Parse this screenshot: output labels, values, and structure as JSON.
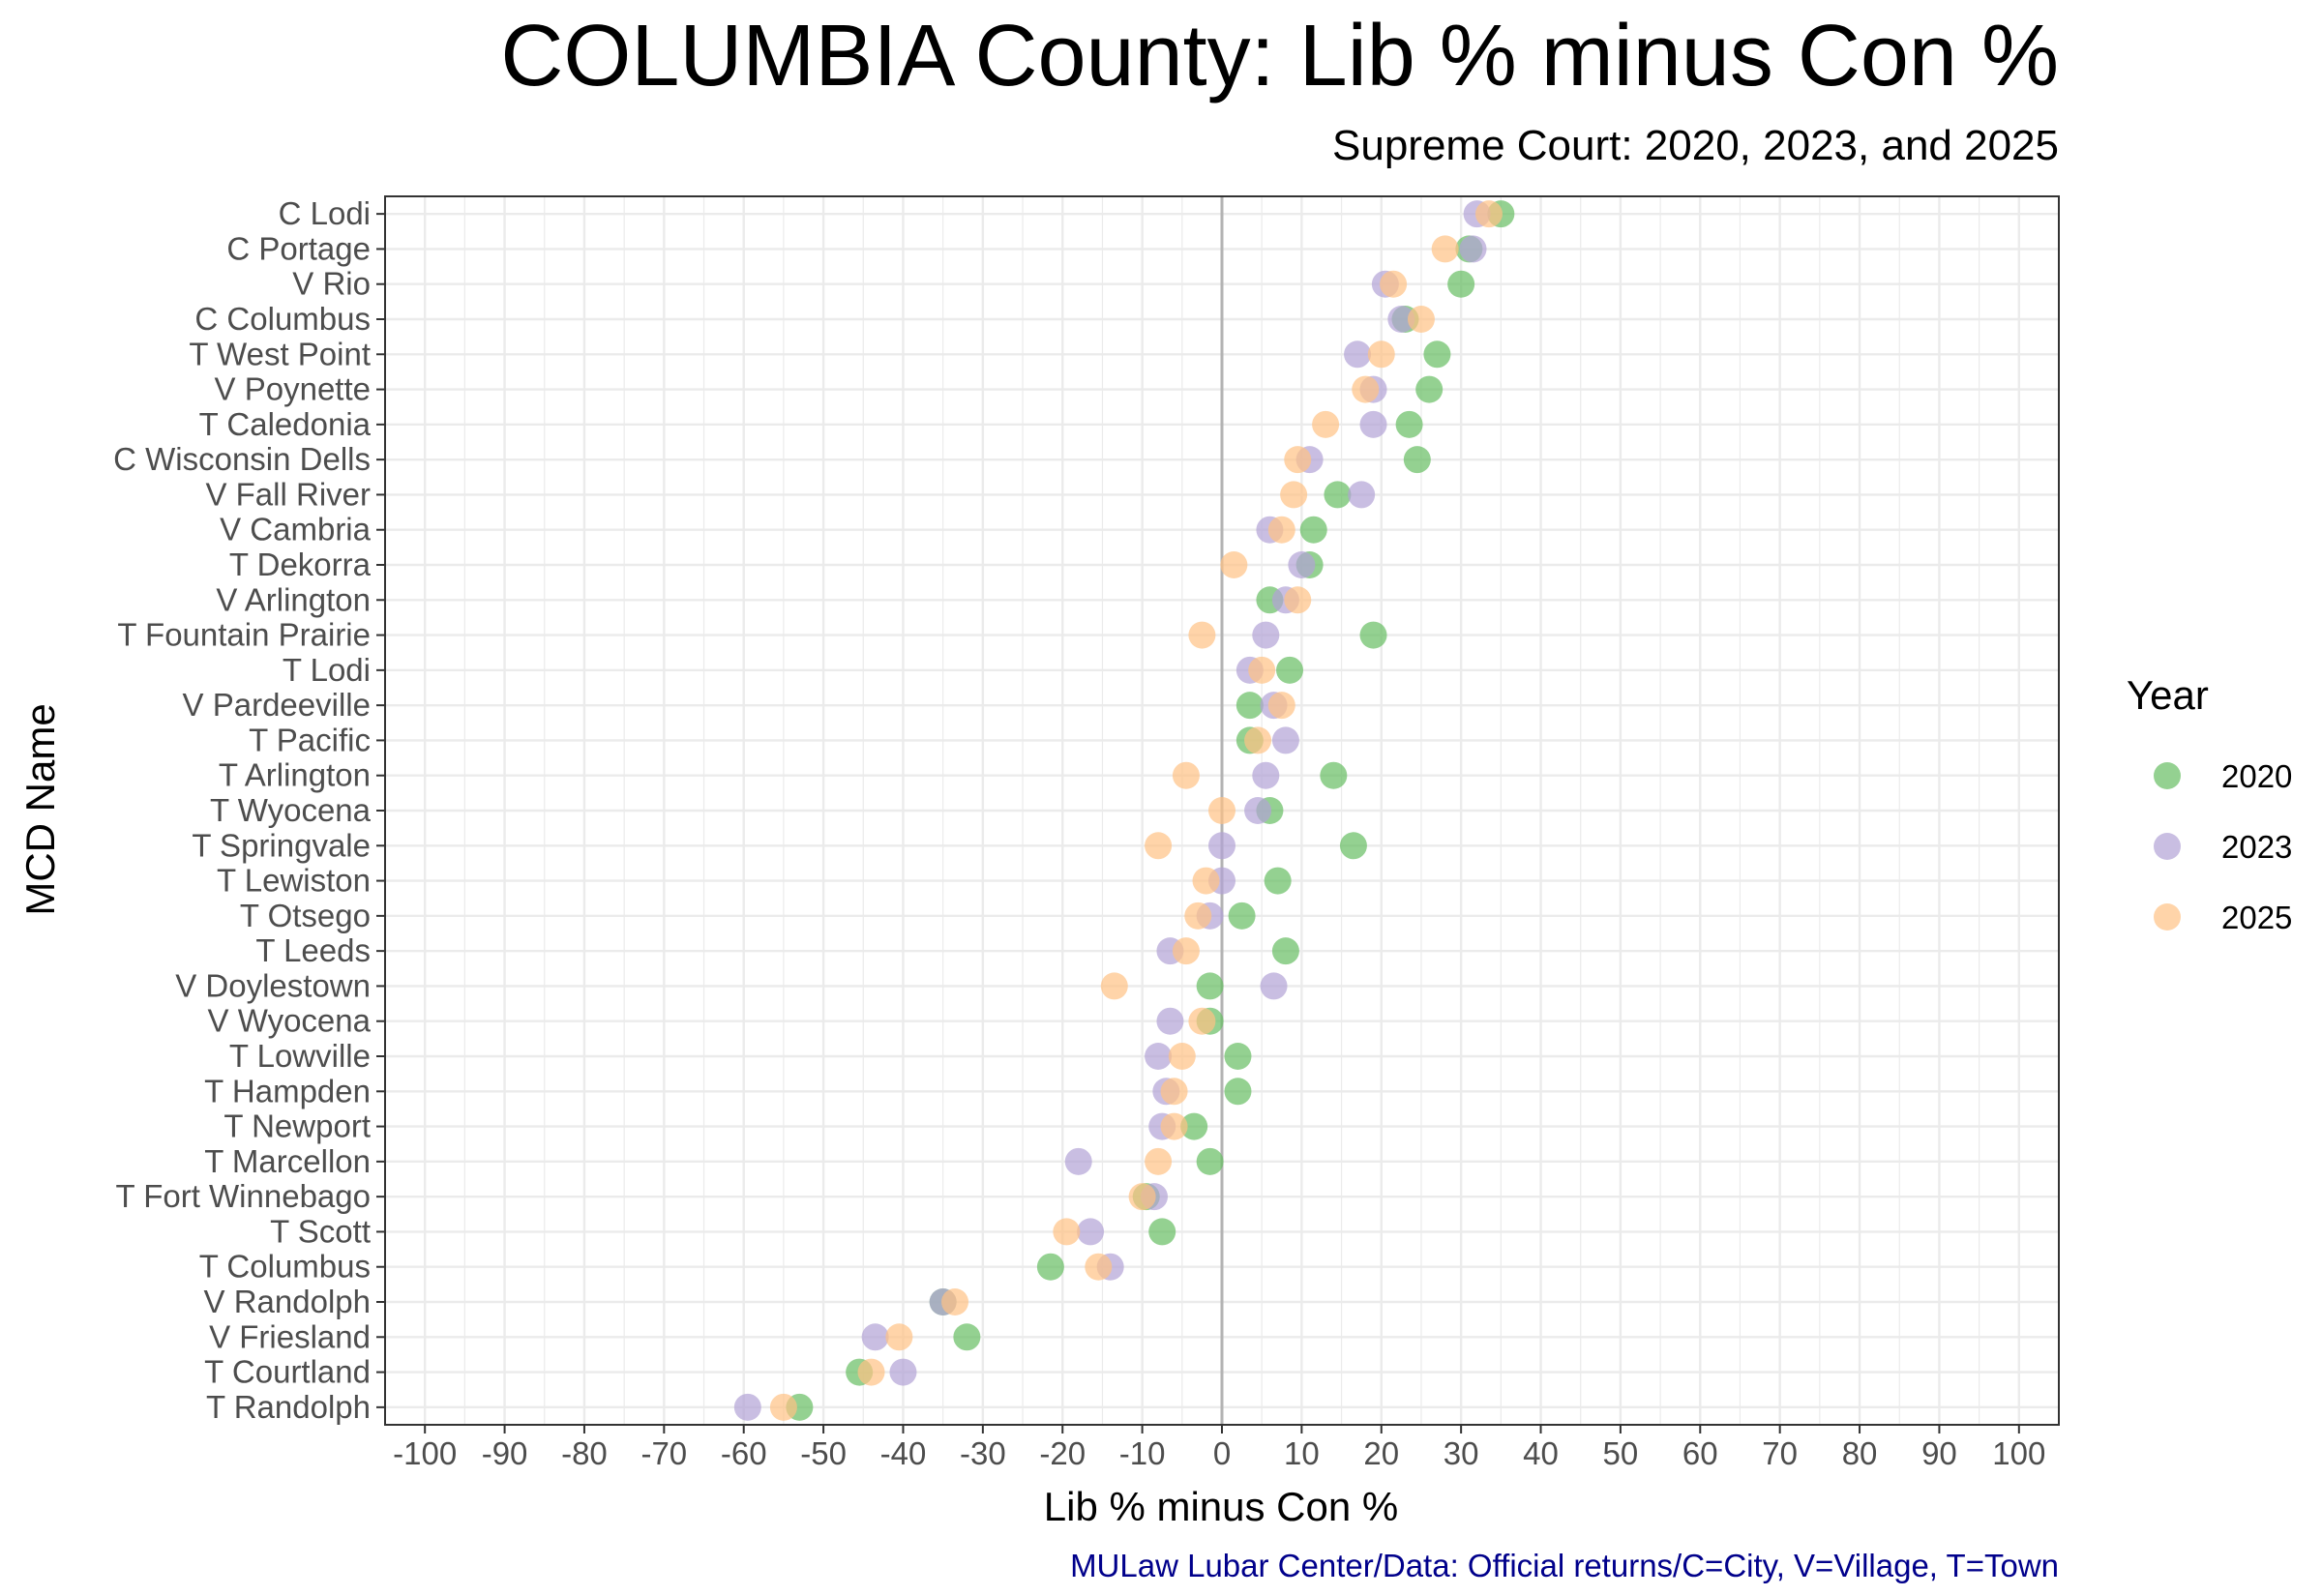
{
  "chart_data": {
    "type": "scatter",
    "title": "COLUMBIA County: Lib % minus Con %",
    "subtitle": "Supreme Court: 2020, 2023, and 2025",
    "xlabel": "Lib % minus Con %",
    "ylabel": "MCD Name",
    "caption": "MULaw Lubar Center/Data: Official returns/C=City, V=Village, T=Town",
    "xlim": [
      -105,
      105
    ],
    "x_ticks": [
      -100,
      -90,
      -80,
      -70,
      -60,
      -50,
      -40,
      -30,
      -20,
      -10,
      0,
      10,
      20,
      30,
      40,
      50,
      60,
      70,
      80,
      90,
      100
    ],
    "grid": true,
    "legend": {
      "title": "Year",
      "position": "right"
    },
    "categories": [
      "C Lodi",
      "C Portage",
      "V Rio",
      "C Columbus",
      "T West Point",
      "V Poynette",
      "T Caledonia",
      "C Wisconsin Dells",
      "V Fall River",
      "V Cambria",
      "T Dekorra",
      "V Arlington",
      "T Fountain Prairie",
      "T Lodi",
      "V Pardeeville",
      "T Pacific",
      "T Arlington",
      "T Wyocena",
      "T Springvale",
      "T Lewiston",
      "T Otsego",
      "T Leeds",
      "V Doylestown",
      "V Wyocena",
      "T Lowville",
      "T Hampden",
      "T Newport",
      "T Marcellon",
      "T Fort Winnebago",
      "T Scott",
      "T Columbus",
      "V Randolph",
      "V Friesland",
      "T Courtland",
      "T Randolph"
    ],
    "series": [
      {
        "name": "2020",
        "color": "#66bd63",
        "values": [
          35,
          31,
          30,
          23,
          27,
          26,
          23.5,
          24.5,
          14.5,
          11.5,
          11,
          6,
          19,
          8.5,
          3.5,
          3.5,
          14,
          6,
          16.5,
          7,
          2.5,
          8,
          -1.5,
          -1.5,
          2,
          2,
          -3.5,
          -1.5,
          -9.5,
          -7.5,
          -21.5,
          -35,
          -32,
          -45.5,
          -53
        ]
      },
      {
        "name": "2023",
        "color": "#b2a3d6",
        "values": [
          32,
          31.5,
          20.5,
          22.5,
          17,
          19,
          19,
          11,
          17.5,
          6,
          10,
          8,
          5.5,
          3.5,
          6.5,
          8,
          5.5,
          4.5,
          0,
          0,
          -1.5,
          -6.5,
          6.5,
          -6.5,
          -8,
          -7,
          -7.5,
          -18,
          -8.5,
          -16.5,
          -14,
          -35,
          -43.5,
          -40,
          -59.5
        ]
      },
      {
        "name": "2025",
        "color": "#ffc285",
        "values": [
          33.5,
          28,
          21.5,
          25,
          20,
          18,
          13,
          9.5,
          9,
          7.5,
          1.5,
          9.5,
          -2.5,
          5,
          7.5,
          4.5,
          -4.5,
          0,
          -8,
          -2,
          -3,
          -4.5,
          -13.5,
          -2.5,
          -5,
          -6,
          -6,
          -8,
          -10,
          -19.5,
          -15.5,
          -33.5,
          -40.5,
          -44,
          -55
        ]
      }
    ]
  }
}
